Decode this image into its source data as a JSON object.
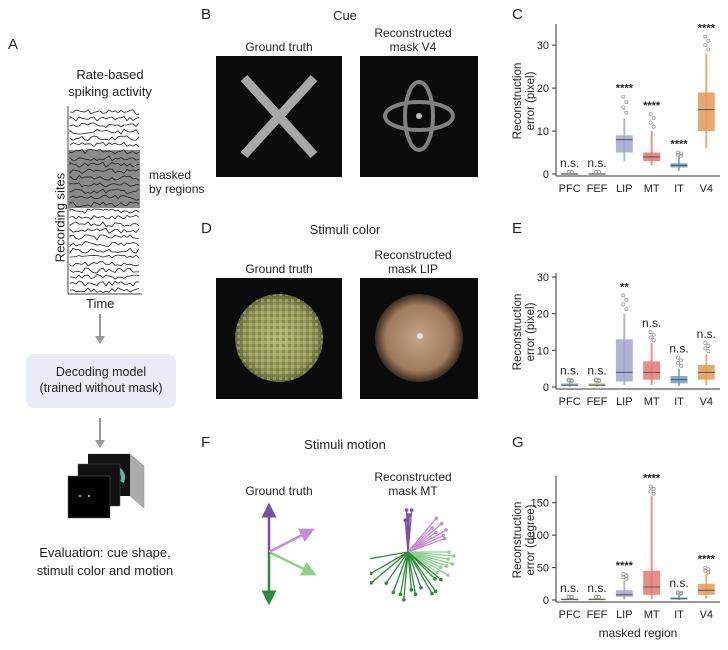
{
  "panels": {
    "A": {
      "letter": "A",
      "title_line1": "Rate-based",
      "title_line2": "spiking activity",
      "ylabel": "Recording sites",
      "xlabel": "Time",
      "mask_label_line1": "masked",
      "mask_label_line2": "by regions",
      "model_line1": "Decoding model",
      "model_line2": "(trained without mask)",
      "eval_line1": "Evaluation: cue shape,",
      "eval_line2": "stimuli color and motion"
    },
    "B": {
      "letter": "B",
      "title": "Cue",
      "left_label": "Ground truth",
      "right_label_line1": "Reconstructed",
      "right_label_line2": "mask V4"
    },
    "D": {
      "letter": "D",
      "title": "Stimuli color",
      "left_label": "Ground truth",
      "right_label_line1": "Reconstructed",
      "right_label_line2": "mask LIP"
    },
    "F": {
      "letter": "F",
      "title": "Stimuli motion",
      "left_label": "Ground truth",
      "right_label_line1": "Reconstructed",
      "right_label_line2": "mask MT"
    }
  },
  "chart_data": [
    {
      "letter": "C",
      "type": "box",
      "categories": [
        "PFC",
        "FEF",
        "LIP",
        "MT",
        "IT",
        "V4"
      ],
      "ylabel_line1": "Reconstruction",
      "ylabel_line2": "error (pixel)",
      "xlabel": "",
      "ylim": [
        0,
        34
      ],
      "yticks": [
        0,
        10,
        20,
        30
      ],
      "medians": [
        0,
        0,
        8,
        4,
        2,
        15
      ],
      "q1": [
        0,
        0,
        5,
        3,
        1.5,
        10
      ],
      "q3": [
        0.2,
        0.2,
        9,
        5,
        2.5,
        19
      ],
      "whisker_low": [
        0,
        0,
        3,
        2,
        0.8,
        6
      ],
      "whisker_high": [
        0.4,
        0.4,
        13,
        10,
        4,
        28
      ],
      "outlier_max": [
        0.5,
        0.5,
        18,
        14,
        5,
        32
      ],
      "significance": [
        "n.s.",
        "n.s.",
        "****",
        "****",
        "****",
        "****"
      ],
      "colors": [
        "#8c8c8c",
        "#c8c07c",
        "#a6a3cc",
        "#e47872",
        "#6f9fbd",
        "#e39a5a"
      ]
    },
    {
      "letter": "E",
      "type": "box",
      "categories": [
        "PFC",
        "FEF",
        "LIP",
        "MT",
        "IT",
        "V4"
      ],
      "ylabel_line1": "Reconstruction",
      "ylabel_line2": "error (pixel)",
      "xlabel": "",
      "ylim": [
        0,
        30
      ],
      "yticks": [
        0,
        10,
        20,
        30
      ],
      "medians": [
        0.5,
        0.5,
        4,
        4,
        2,
        4
      ],
      "q1": [
        0.3,
        0.3,
        1.5,
        2,
        1,
        2
      ],
      "q3": [
        1,
        1,
        13,
        7,
        3,
        6
      ],
      "whisker_low": [
        0,
        0,
        0.5,
        0.5,
        0.3,
        0.5
      ],
      "whisker_high": [
        1.5,
        1.5,
        20,
        12,
        5,
        9
      ],
      "outlier_max": [
        2,
        2,
        25,
        15,
        8,
        12
      ],
      "significance": [
        "n.s.",
        "n.s.",
        "**",
        "n.s.",
        "n.s.",
        "n.s."
      ],
      "colors": [
        "#8fb3c7",
        "#c8c07c",
        "#a6a3cc",
        "#e47872",
        "#6f9fbd",
        "#e39a5a"
      ]
    },
    {
      "letter": "G",
      "type": "box",
      "categories": [
        "PFC",
        "FEF",
        "LIP",
        "MT",
        "IT",
        "V4"
      ],
      "ylabel_line1": "Reconstruction",
      "ylabel_line2": "error (degree)",
      "xlabel": "masked region",
      "ylim": [
        0,
        185
      ],
      "yticks": [
        0,
        50,
        100,
        150
      ],
      "medians": [
        1,
        1,
        8,
        20,
        2,
        15
      ],
      "q1": [
        0.5,
        0.5,
        5,
        8,
        1,
        8
      ],
      "q3": [
        2,
        2,
        15,
        45,
        4,
        25
      ],
      "whisker_low": [
        0,
        0,
        1,
        1,
        0,
        2
      ],
      "whisker_high": [
        4,
        4,
        30,
        160,
        8,
        40
      ],
      "outlier_max": [
        5,
        5,
        40,
        175,
        12,
        50
      ],
      "significance": [
        "n.s.",
        "n.s.",
        "****",
        "****",
        "n.s.",
        "****"
      ],
      "colors": [
        "#8c8c8c",
        "#c8c07c",
        "#a6a3cc",
        "#e47872",
        "#6f9fbd",
        "#e39a5a"
      ]
    }
  ]
}
